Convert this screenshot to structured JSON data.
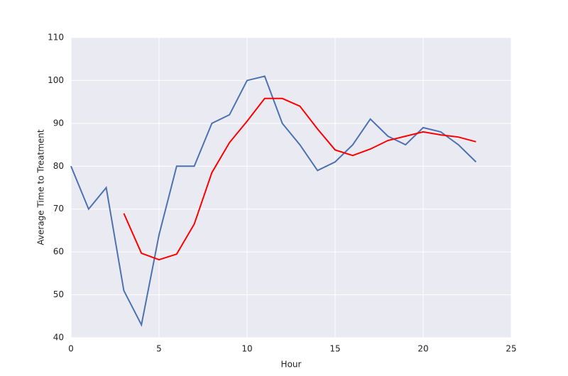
{
  "chart_data": {
    "type": "line",
    "xlabel": "Hour",
    "ylabel": "Average Time to Treatment",
    "x": [
      0,
      1,
      2,
      3,
      4,
      5,
      6,
      7,
      8,
      9,
      10,
      11,
      12,
      13,
      14,
      15,
      16,
      17,
      18,
      19,
      20,
      21,
      22,
      23
    ],
    "series": [
      {
        "color": "#4c72b0",
        "values": [
          80,
          70,
          75,
          51,
          43,
          64,
          80,
          80,
          90,
          92,
          100,
          101,
          90,
          85,
          79,
          81,
          85,
          91,
          87,
          85,
          89,
          88,
          85,
          81
        ]
      },
      {
        "color": "#ff0000",
        "values": [
          null,
          null,
          null,
          69,
          59.7,
          58.2,
          59.5,
          66.5,
          78.5,
          85.5,
          90.5,
          95.8,
          95.8,
          94,
          88.7,
          83.8,
          82.5,
          84,
          86,
          87,
          88,
          87.3,
          86.8,
          85.7
        ]
      }
    ],
    "xlim": [
      0,
      25
    ],
    "xticks": [
      0,
      5,
      10,
      15,
      20,
      25
    ],
    "ylim": [
      40,
      110
    ],
    "yticks": [
      40,
      50,
      60,
      70,
      80,
      90,
      100,
      110
    ],
    "grid": true
  }
}
